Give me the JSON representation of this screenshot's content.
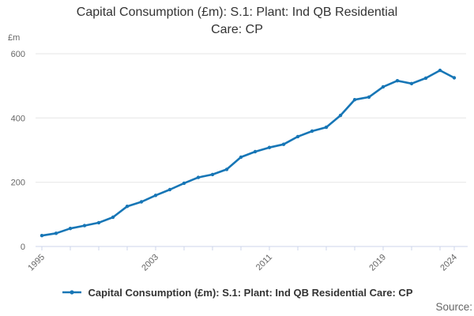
{
  "source_label": "Source:",
  "colors": {
    "line": "#1776b6",
    "grid": "#e6e6e6",
    "axis": "#ccd6eb",
    "tick_label": "#666666",
    "title": "#333333",
    "source": "#666666"
  },
  "chart_data": {
    "type": "line",
    "title": "Capital Consumption (£m): S.1: Plant: Ind QB Residential Care: CP",
    "xlabel": "",
    "ylabel": "£m",
    "x": [
      1995,
      1996,
      1997,
      1998,
      1999,
      2000,
      2001,
      2002,
      2003,
      2004,
      2005,
      2006,
      2007,
      2008,
      2009,
      2010,
      2011,
      2012,
      2013,
      2014,
      2015,
      2016,
      2017,
      2018,
      2019,
      2020,
      2021,
      2022,
      2023,
      2024
    ],
    "series": [
      {
        "name": "Capital Consumption (£m): S.1: Plant: Ind QB Residential Care: CP",
        "values": [
          34,
          41,
          56,
          65,
          74,
          91,
          125,
          139,
          159,
          177,
          197,
          215,
          224,
          240,
          278,
          295,
          308,
          318,
          342,
          359,
          371,
          408,
          457,
          465,
          497,
          516,
          507,
          524,
          548,
          525
        ],
        "color": "#1776b6"
      }
    ],
    "ylim": [
      0,
      600
    ],
    "yticks": [
      0,
      200,
      400,
      600
    ],
    "xticks_labeled": [
      1995,
      2003,
      2011,
      2019,
      2024
    ],
    "xtick_interval_years": 2,
    "grid": true,
    "legend_position": "bottom",
    "marker": "circle"
  }
}
